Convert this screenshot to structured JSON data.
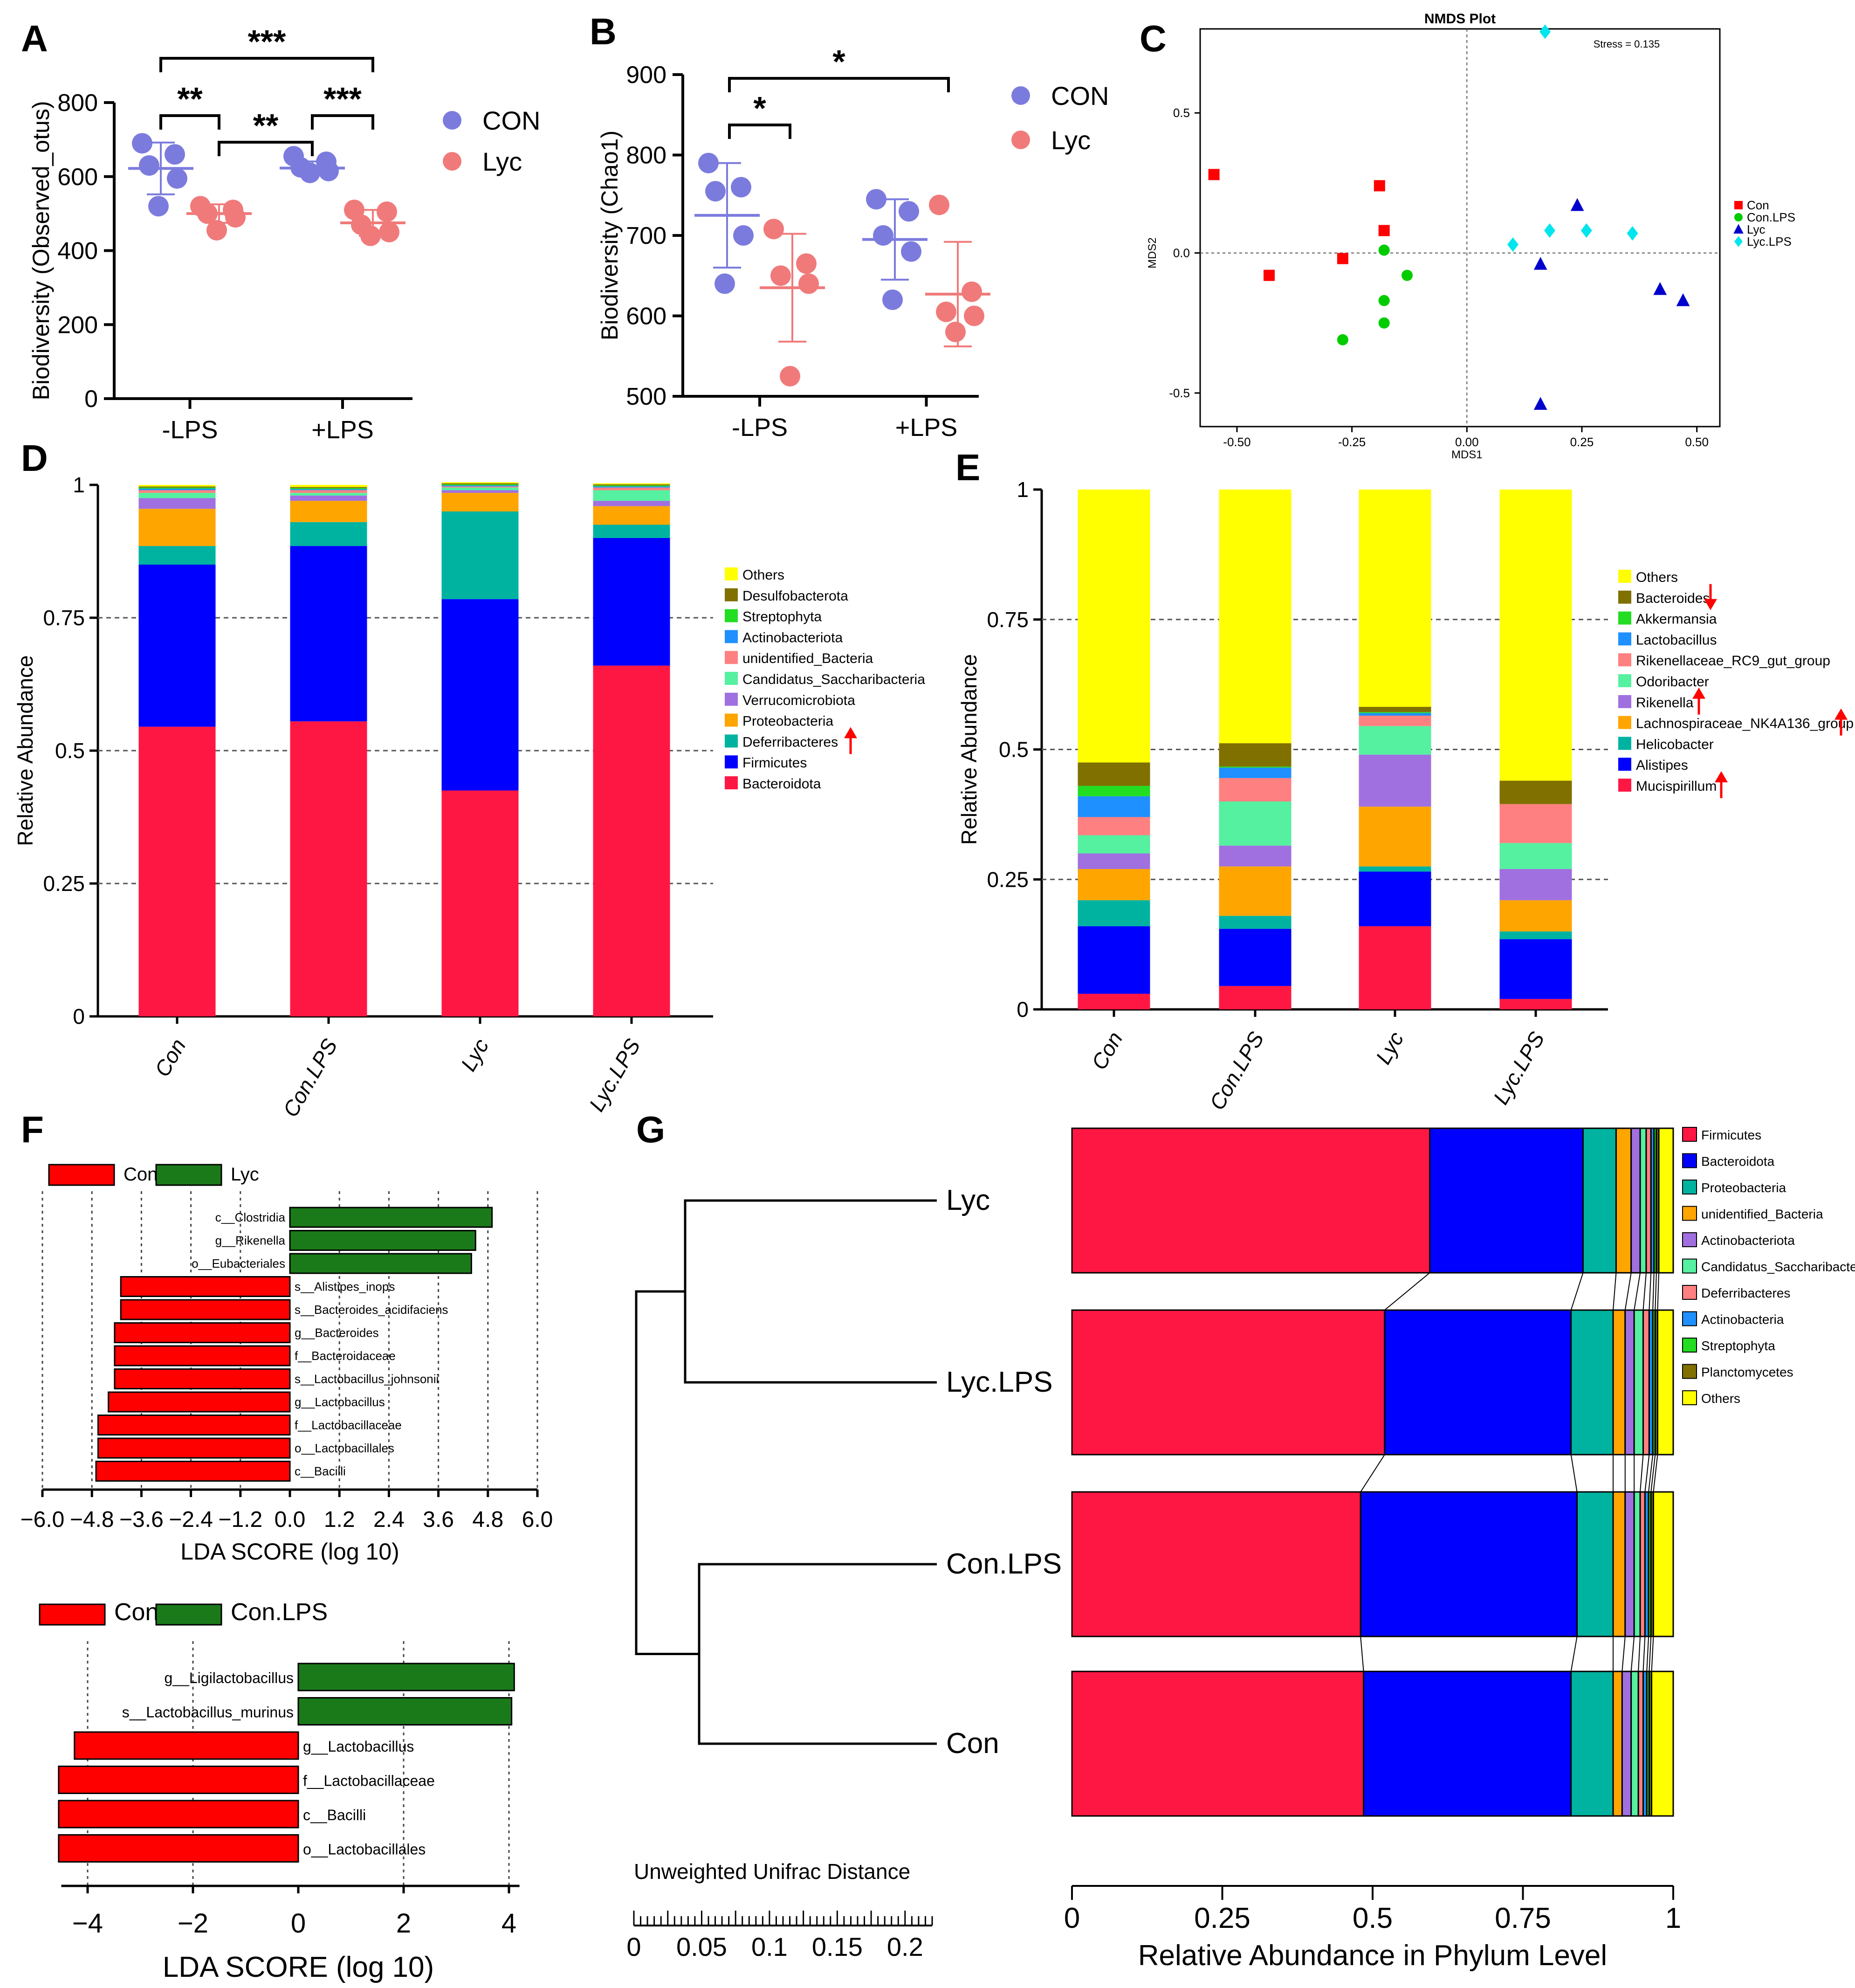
{
  "panels": {
    "A": {
      "letter": "A",
      "chart_data": {
        "type": "scatter",
        "ylabel": "Biodiversity (Observed_otus)",
        "ylim": [
          0,
          800
        ],
        "yticks": [
          "0",
          "200",
          "400",
          "600",
          "800"
        ],
        "categories": [
          "-LPS",
          "+LPS"
        ],
        "series": [
          {
            "name": "CON",
            "color": "#7b7bde",
            "mean": [
              622,
              623
            ],
            "sd": [
              70,
              18
            ],
            "points": [
              [
                690,
                660,
                630,
                595,
                520
              ],
              [
                655,
                640,
                625,
                615,
                610
              ]
            ]
          },
          {
            "name": "Lyc",
            "color": "#f07a7a",
            "mean": [
              500,
              475
            ],
            "sd": [
              25,
              35
            ],
            "points": [
              [
                520,
                510,
                500,
                490,
                455
              ],
              [
                510,
                505,
                470,
                450,
                440
              ]
            ]
          }
        ],
        "significance": [
          "***",
          "**",
          "**",
          "***"
        ]
      }
    },
    "B": {
      "letter": "B",
      "chart_data": {
        "type": "scatter",
        "ylabel": "Biodiversity (Chao1)",
        "ylim": [
          500,
          900
        ],
        "yticks": [
          "500",
          "600",
          "700",
          "800",
          "900"
        ],
        "categories": [
          "-LPS",
          "+LPS"
        ],
        "series": [
          {
            "name": "CON",
            "color": "#7b7bde",
            "mean": [
              725,
              695
            ],
            "sd": [
              65,
              50
            ],
            "points": [
              [
                790,
                760,
                755,
                700,
                640
              ],
              [
                745,
                730,
                700,
                680,
                620
              ]
            ]
          },
          {
            "name": "Lyc",
            "color": "#f07a7a",
            "mean": [
              635,
              627
            ],
            "sd": [
              67,
              65
            ],
            "points": [
              [
                708,
                665,
                650,
                640,
                525
              ],
              [
                738,
                630,
                605,
                600,
                580
              ]
            ]
          }
        ],
        "significance": [
          "*",
          "*"
        ]
      }
    },
    "C": {
      "letter": "C",
      "chart_data": {
        "type": "scatter",
        "title": "NMDS Plot",
        "xlabel": "MDS1",
        "ylabel": "MDS2",
        "annotation": "Stress = 0.135",
        "xticks": [
          "-0.50",
          "-0.25",
          "0.00",
          "0.25",
          "0.50"
        ],
        "yticks": [
          "0.5",
          "0.0",
          "-0.5"
        ],
        "xlim": [
          -0.58,
          0.55
        ],
        "ylim": [
          -0.62,
          0.8
        ],
        "series": [
          {
            "name": "Con",
            "color": "#ff0000",
            "marker": "square",
            "points": [
              [
                -0.55,
                0.28
              ],
              [
                -0.19,
                0.24
              ],
              [
                -0.18,
                0.08
              ],
              [
                -0.43,
                -0.08
              ],
              [
                -0.27,
                -0.02
              ]
            ]
          },
          {
            "name": "Con.LPS",
            "color": "#00cc00",
            "marker": "circle",
            "points": [
              [
                -0.18,
                0.01
              ],
              [
                -0.13,
                -0.08
              ],
              [
                -0.18,
                -0.17
              ],
              [
                -0.18,
                -0.25
              ],
              [
                -0.27,
                -0.31
              ]
            ]
          },
          {
            "name": "Lyc",
            "color": "#0000cc",
            "marker": "triangle",
            "points": [
              [
                0.24,
                0.17
              ],
              [
                0.16,
                -0.04
              ],
              [
                0.42,
                -0.13
              ],
              [
                0.47,
                -0.17
              ],
              [
                0.16,
                -0.54
              ]
            ]
          },
          {
            "name": "Lyc.LPS",
            "color": "#00e5ee",
            "marker": "diamond",
            "points": [
              [
                0.17,
                0.79
              ],
              [
                0.1,
                0.03
              ],
              [
                0.18,
                0.08
              ],
              [
                0.26,
                0.08
              ],
              [
                0.36,
                0.07
              ]
            ]
          }
        ]
      }
    },
    "D": {
      "letter": "D",
      "chart_data": {
        "type": "bar",
        "stacked": true,
        "ylabel": "Relative Abundance",
        "ylim": [
          0,
          1
        ],
        "yticks": [
          "0",
          "0.25",
          "0.5",
          "0.75",
          "1"
        ],
        "categories": [
          "Con",
          "Con.LPS",
          "Lyc",
          "Lyc.LPS"
        ],
        "series": [
          {
            "name": "Bacteroidota",
            "color": "#ff1744",
            "values": [
              0.545,
              0.555,
              0.425,
              0.66
            ]
          },
          {
            "name": "Firmicutes",
            "color": "#0000ff",
            "values": [
              0.305,
              0.33,
              0.36,
              0.24
            ]
          },
          {
            "name": "Deferribacteres",
            "color": "#00b3a1",
            "values": [
              0.035,
              0.045,
              0.165,
              0.025
            ]
          },
          {
            "name": "Proteobacteria",
            "color": "#ffa500",
            "values": [
              0.07,
              0.04,
              0.035,
              0.035
            ]
          },
          {
            "name": "Verrucomicrobiota",
            "color": "#a070e0",
            "values": [
              0.02,
              0.01,
              0.005,
              0.01
            ]
          },
          {
            "name": "Candidatus_Saccharibacteria",
            "color": "#55f0a0",
            "values": [
              0.01,
              0.005,
              0.005,
              0.02
            ]
          },
          {
            "name": "unidentified_Bacteria",
            "color": "#ff8080",
            "values": [
              0.005,
              0.005,
              0.002,
              0.005
            ]
          },
          {
            "name": "Actinobacteriota",
            "color": "#1e90ff",
            "values": [
              0.003,
              0.002,
              0.002,
              0.002
            ]
          },
          {
            "name": "Streptophyta",
            "color": "#22dd22",
            "values": [
              0.002,
              0.002,
              0.002,
              0.002
            ]
          },
          {
            "name": "Desulfobacterota",
            "color": "#807000",
            "values": [
              0.002,
              0.002,
              0.002,
              0.002
            ]
          },
          {
            "name": "Others",
            "color": "#ffff00",
            "values": [
              0.003,
              0.004,
              0.002,
              0.002
            ]
          }
        ],
        "legend_order": [
          "Others",
          "Desulfobacterota",
          "Streptophyta",
          "Actinobacteriota",
          "unidentified_Bacteria",
          "Candidatus_Saccharibacteria",
          "Verrucomicrobiota",
          "Proteobacteria",
          "Deferribacteres",
          "Firmicutes",
          "Bacteroidota"
        ],
        "arrows": [
          "Deferribacteres"
        ]
      }
    },
    "E": {
      "letter": "E",
      "chart_data": {
        "type": "bar",
        "stacked": true,
        "ylabel": "Relative Abundance",
        "ylim": [
          0,
          1
        ],
        "yticks": [
          "0",
          "0.25",
          "0.5",
          "0.75",
          "1"
        ],
        "categories": [
          "Con",
          "Con.LPS",
          "Lyc",
          "Lyc.LPS"
        ],
        "series": [
          {
            "name": "Mucispirillum",
            "color": "#ff1744",
            "values": [
              0.03,
              0.045,
              0.16,
              0.02
            ]
          },
          {
            "name": "Alistipes",
            "color": "#0000ff",
            "values": [
              0.13,
              0.11,
              0.105,
              0.115
            ]
          },
          {
            "name": "Helicobacter",
            "color": "#00b3a1",
            "values": [
              0.05,
              0.025,
              0.01,
              0.015
            ]
          },
          {
            "name": "Lachnospiraceae_NK4A136_group",
            "color": "#ffa500",
            "values": [
              0.06,
              0.095,
              0.115,
              0.06
            ]
          },
          {
            "name": "Rikenella",
            "color": "#a070e0",
            "values": [
              0.03,
              0.04,
              0.1,
              0.06
            ]
          },
          {
            "name": "Odoribacter",
            "color": "#55f0a0",
            "values": [
              0.035,
              0.085,
              0.055,
              0.05
            ]
          },
          {
            "name": "Rikenellaceae_RC9_gut_group",
            "color": "#ff8080",
            "values": [
              0.035,
              0.045,
              0.02,
              0.075
            ]
          },
          {
            "name": "Lactobacillus",
            "color": "#1e90ff",
            "values": [
              0.04,
              0.02,
              0.005,
              0.0
            ]
          },
          {
            "name": "Akkermansia",
            "color": "#22dd22",
            "values": [
              0.02,
              0.002,
              0.002,
              0.0
            ]
          },
          {
            "name": "Bacteroides",
            "color": "#807000",
            "values": [
              0.045,
              0.045,
              0.01,
              0.045
            ]
          },
          {
            "name": "Others",
            "color": "#ffff00",
            "values": [
              0.525,
              0.488,
              0.418,
              0.56
            ]
          }
        ],
        "legend_order": [
          "Others",
          "Bacteroides",
          "Akkermansia",
          "Lactobacillus",
          "Rikenellaceae_RC9_gut_group",
          "Odoribacter",
          "Rikenella",
          "Lachnospiraceae_NK4A136_group",
          "Helicobacter",
          "Alistipes",
          "Mucispirillum"
        ],
        "arrows_down": [
          "Bacteroides"
        ],
        "arrows_up": [
          "Rikenella",
          "Lachnospiraceae_NK4A136_group",
          "Mucispirillum"
        ]
      }
    },
    "F1": {
      "letter": "F",
      "chart_data": {
        "type": "bar",
        "orientation": "horizontal",
        "xlabel": "LDA SCORE (log 10)",
        "xlim": [
          -6,
          6
        ],
        "xticks": [
          "−6.0",
          "−4.8",
          "−3.6",
          "−2.4",
          "−1.2",
          "0.0",
          "1.2",
          "2.4",
          "3.6",
          "4.8",
          "6.0"
        ],
        "legend": [
          {
            "name": "Con",
            "color": "#ff0000"
          },
          {
            "name": "Lyc",
            "color": "#1a7a1a"
          }
        ],
        "items": [
          {
            "label": "c__Clostridia",
            "value": 4.9
          },
          {
            "label": "g__Rikenella",
            "value": 4.5
          },
          {
            "label": "o__Eubacteriales",
            "value": 4.4
          },
          {
            "label": "s__Alistipes_inops",
            "value": -4.1
          },
          {
            "label": "s__Bacteroides_acidifaciens",
            "value": -4.1
          },
          {
            "label": "g__Bacteroides",
            "value": -4.25
          },
          {
            "label": "f__Bacteroidaceae",
            "value": -4.25
          },
          {
            "label": "s__Lactobacillus_johnsonii",
            "value": -4.25
          },
          {
            "label": "g__Lactobacillus",
            "value": -4.4
          },
          {
            "label": "f__Lactobacillaceae",
            "value": -4.65
          },
          {
            "label": "o__Lactobacillales",
            "value": -4.65
          },
          {
            "label": "c__Bacilli",
            "value": -4.7
          }
        ]
      }
    },
    "F2": {
      "chart_data": {
        "type": "bar",
        "orientation": "horizontal",
        "xlabel": "LDA SCORE (log 10)",
        "xlim": [
          -4.5,
          4.2
        ],
        "xticks": [
          "−4",
          "−2",
          "0",
          "2",
          "4"
        ],
        "legend": [
          {
            "name": "Con",
            "color": "#ff0000"
          },
          {
            "name": "Con.LPS",
            "color": "#1a7a1a"
          }
        ],
        "items": [
          {
            "label": "g__Ligilactobacillus",
            "value": 4.1
          },
          {
            "label": "s__Lactobacillus_murinus",
            "value": 4.05
          },
          {
            "label": "g__Lactobacillus",
            "value": -4.25
          },
          {
            "label": "f__Lactobacillaceae",
            "value": -4.55
          },
          {
            "label": "c__Bacilli",
            "value": -4.55
          },
          {
            "label": "o__Lactobacillales",
            "value": -4.55
          }
        ]
      }
    },
    "G": {
      "letter": "G",
      "chart_data": {
        "type": "bar",
        "stacked": true,
        "orientation": "horizontal",
        "xlabel": "Relative Abundance in Phylum Level",
        "xticks": [
          "0",
          "0.25",
          "0.5",
          "0.75",
          "1"
        ],
        "dendrogram_label": "Unweighted Unifrac Distance",
        "dendrogram_ticks": [
          "0",
          "0.05",
          "0.1",
          "0.15",
          "0.2"
        ],
        "categories": [
          "Lyc",
          "Lyc.LPS",
          "Con.LPS",
          "Con"
        ],
        "series": [
          {
            "name": "Firmicutes",
            "color": "#ff1744",
            "values": [
              0.595,
              0.52,
              0.48,
              0.485
            ]
          },
          {
            "name": "Bacteroidota",
            "color": "#0000ff",
            "values": [
              0.255,
              0.31,
              0.36,
              0.345
            ]
          },
          {
            "name": "Proteobacteria",
            "color": "#00b3a1",
            "values": [
              0.055,
              0.07,
              0.06,
              0.07
            ]
          },
          {
            "name": "unidentified_Bacteria",
            "color": "#ffa500",
            "values": [
              0.025,
              0.02,
              0.02,
              0.015
            ]
          },
          {
            "name": "Actinobacteriota",
            "color": "#a070e0",
            "values": [
              0.015,
              0.015,
              0.015,
              0.015
            ]
          },
          {
            "name": "Candidatus_Saccharibacteria",
            "color": "#55f0a0",
            "values": [
              0.01,
              0.015,
              0.01,
              0.012
            ]
          },
          {
            "name": "Deferribacteres",
            "color": "#ff8080",
            "values": [
              0.008,
              0.01,
              0.008,
              0.008
            ]
          },
          {
            "name": "Actinobacteria",
            "color": "#1e90ff",
            "values": [
              0.005,
              0.006,
              0.006,
              0.006
            ]
          },
          {
            "name": "Streptophyta",
            "color": "#22dd22",
            "values": [
              0.004,
              0.004,
              0.004,
              0.004
            ]
          },
          {
            "name": "Planctomycetes",
            "color": "#807000",
            "values": [
              0.004,
              0.004,
              0.004,
              0.004
            ]
          },
          {
            "name": "Others",
            "color": "#ffff00",
            "values": [
              0.024,
              0.026,
              0.033,
              0.036
            ]
          }
        ]
      }
    }
  }
}
